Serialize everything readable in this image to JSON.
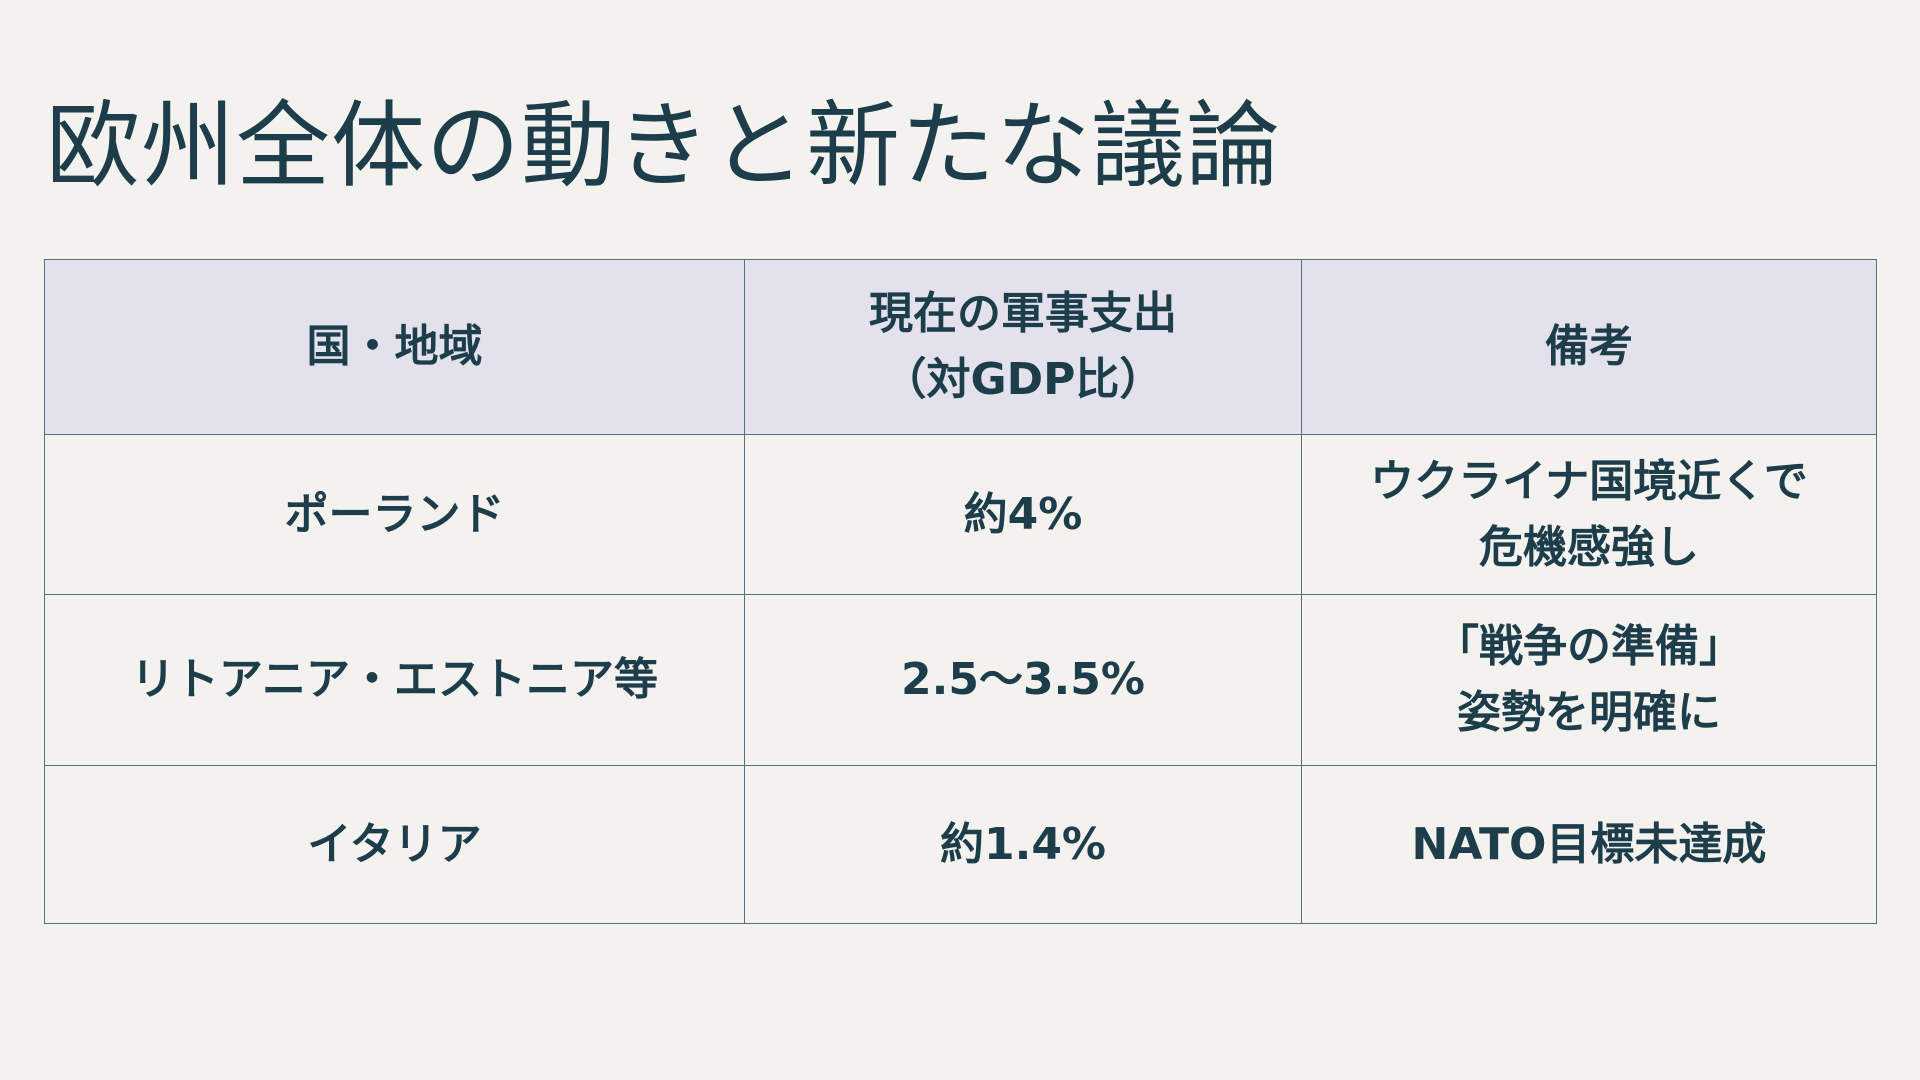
{
  "slide": {
    "title": "欧州全体の動きと新たな議論"
  },
  "table": {
    "headers": [
      {
        "lines": [
          "国・地域"
        ]
      },
      {
        "lines": [
          "現在の軍事支出",
          "（対GDP比）"
        ]
      },
      {
        "lines": [
          "備考"
        ]
      }
    ],
    "rows": [
      {
        "country": "ポーランド",
        "spending": "約4%",
        "note_lines": [
          "ウクライナ国境近くで",
          "危機感強し"
        ]
      },
      {
        "country": "リトアニア・エストニア等",
        "spending": "2.5～3.5%",
        "note_lines": [
          "「戦争の準備」",
          "姿勢を明確に"
        ]
      },
      {
        "country": "イタリア",
        "spending": "約1.4%",
        "note_lines": [
          "NATO目標未達成"
        ]
      }
    ]
  },
  "colors": {
    "background": "#f3f2ee",
    "header_background": "#e2e1ec",
    "text": "#1d3d4b",
    "border": "#55707e"
  }
}
